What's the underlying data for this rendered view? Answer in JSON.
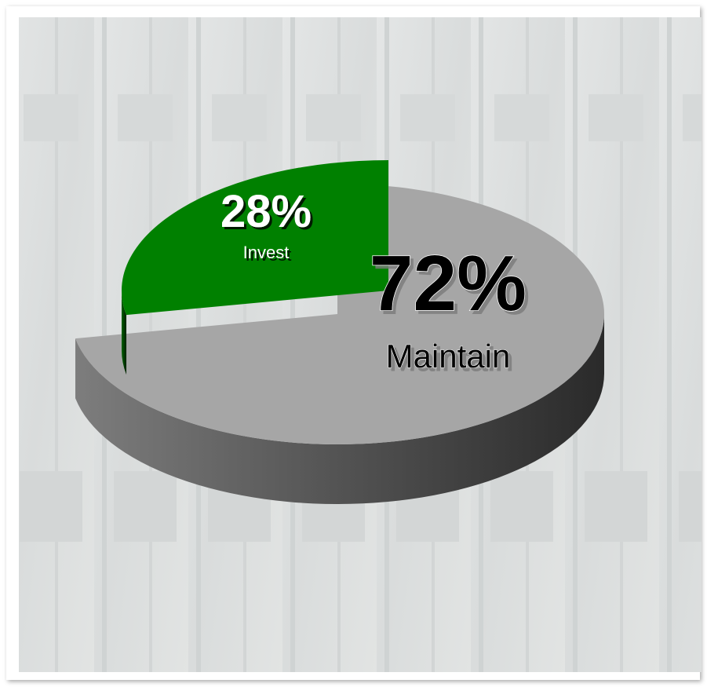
{
  "chart_data": {
    "type": "pie",
    "categories": [
      "Maintain",
      "Invest"
    ],
    "values": [
      72,
      28
    ],
    "value_labels": [
      "72%",
      "28%"
    ],
    "colors": [
      "#a6a6a6",
      "#008000"
    ],
    "exploded": [
      false,
      true
    ]
  }
}
